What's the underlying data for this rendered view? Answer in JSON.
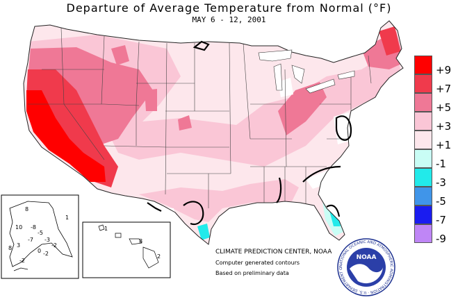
{
  "header": {
    "title": "Departure of Average Temperature from Normal (°F)",
    "subtitle": "MAY 6 - 12, 2001"
  },
  "legend": {
    "items": [
      {
        "label": "+9",
        "color": "#ff0000"
      },
      {
        "label": "+7",
        "color": "#f03a4c"
      },
      {
        "label": "+5",
        "color": "#ef7896"
      },
      {
        "label": "+3",
        "color": "#fac6d6"
      },
      {
        "label": "+1",
        "color": "#fde7ec"
      },
      {
        "label": "-1",
        "color": "#c9fdf5"
      },
      {
        "label": "-3",
        "color": "#22eaea"
      },
      {
        "label": "-5",
        "color": "#4095e9"
      },
      {
        "label": "-7",
        "color": "#1a1cf0"
      },
      {
        "label": "-9",
        "color": "#bf86f6"
      }
    ]
  },
  "insets": {
    "alaska_labels": [
      "8",
      "1",
      "10",
      "-8",
      "-5",
      "-3",
      "-7",
      "3",
      "-2",
      "-2",
      "8",
      "-2",
      "0"
    ],
    "hawaii_labels": [
      "1",
      "8",
      "2"
    ]
  },
  "credits": {
    "org": "CLIMATE PREDICTION CENTER, NOAA",
    "line1": "Computer generated contours",
    "line2": "Based on preliminary data"
  },
  "logo": {
    "text": "NOAA",
    "ring_text": "NATIONAL OCEANIC AND ATMOSPHERIC ADMINISTRATION · U.S. DEPARTMENT OF COMMERCE"
  }
}
